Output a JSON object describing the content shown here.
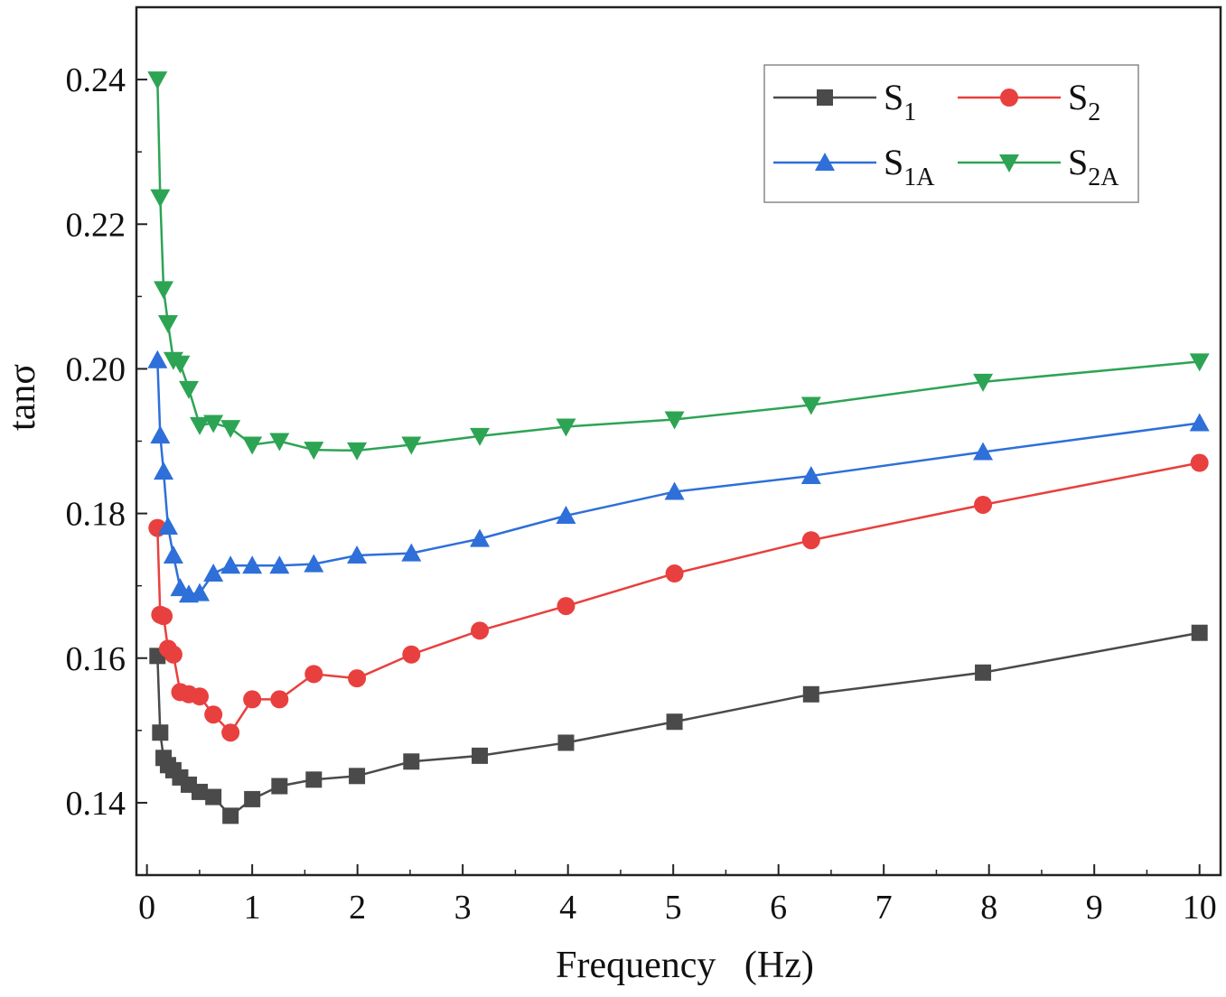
{
  "chart_data": {
    "type": "line",
    "title": "",
    "xlabel": "Frequency   (Hz)",
    "ylabel": "tanσ",
    "xlim": [
      -0.1,
      10.2
    ],
    "ylim": [
      0.13,
      0.25
    ],
    "xticks": [
      0,
      1,
      2,
      3,
      4,
      5,
      6,
      7,
      8,
      9,
      10
    ],
    "xtick_labels": [
      "0",
      "1",
      "2",
      "3",
      "4",
      "5",
      "6",
      "7",
      "8",
      "9",
      "10"
    ],
    "yticks": [
      0.14,
      0.16,
      0.18,
      0.2,
      0.22,
      0.24
    ],
    "ytick_labels": [
      "0.14",
      "0.16",
      "0.18",
      "0.20",
      "0.22",
      "0.24"
    ],
    "grid": false,
    "legend_position": "top-right",
    "series": [
      {
        "name": "S1",
        "label_main": "S",
        "label_sub": "1",
        "color": "#4a4a4a",
        "marker": "square",
        "x": [
          0.1,
          0.126,
          0.158,
          0.2,
          0.251,
          0.316,
          0.398,
          0.501,
          0.631,
          0.794,
          1.0,
          1.259,
          1.585,
          1.995,
          2.512,
          3.162,
          3.981,
          5.012,
          6.31,
          7.943,
          10.0
        ],
        "y": [
          0.1603,
          0.1497,
          0.1462,
          0.1452,
          0.1445,
          0.1435,
          0.1425,
          0.1415,
          0.1408,
          0.1382,
          0.1405,
          0.1423,
          0.1432,
          0.1437,
          0.1457,
          0.1465,
          0.1483,
          0.1512,
          0.155,
          0.158,
          0.1635
        ]
      },
      {
        "name": "S2",
        "label_main": "S",
        "label_sub": "2",
        "color": "#e8403e",
        "marker": "circle",
        "x": [
          0.1,
          0.126,
          0.158,
          0.2,
          0.251,
          0.316,
          0.398,
          0.501,
          0.631,
          0.794,
          1.0,
          1.259,
          1.585,
          1.995,
          2.512,
          3.162,
          3.981,
          5.012,
          6.31,
          7.943,
          10.0
        ],
        "y": [
          0.178,
          0.166,
          0.1658,
          0.1613,
          0.1605,
          0.1553,
          0.155,
          0.1547,
          0.1522,
          0.1497,
          0.1543,
          0.1543,
          0.1578,
          0.1572,
          0.1605,
          0.1638,
          0.1672,
          0.1717,
          0.1763,
          0.1812,
          0.187
        ]
      },
      {
        "name": "S1A",
        "label_main": "S",
        "label_sub": "1A",
        "color": "#2e6fd9",
        "marker": "triangle-up",
        "x": [
          0.1,
          0.126,
          0.158,
          0.2,
          0.251,
          0.316,
          0.398,
          0.501,
          0.631,
          0.794,
          1.0,
          1.259,
          1.585,
          1.995,
          2.512,
          3.162,
          3.981,
          5.012,
          6.31,
          7.943,
          10.0
        ],
        "y": [
          0.2012,
          0.1908,
          0.1858,
          0.1782,
          0.1742,
          0.1697,
          0.1688,
          0.169,
          0.1717,
          0.1728,
          0.1728,
          0.1728,
          0.173,
          0.1742,
          0.1745,
          0.1765,
          0.1797,
          0.183,
          0.1852,
          0.1885,
          0.1925
        ]
      },
      {
        "name": "S2A",
        "label_main": "S",
        "label_sub": "2A",
        "color": "#2da454",
        "marker": "triangle-down",
        "x": [
          0.1,
          0.126,
          0.158,
          0.2,
          0.251,
          0.316,
          0.398,
          0.501,
          0.631,
          0.794,
          1.0,
          1.259,
          1.585,
          1.995,
          2.512,
          3.162,
          3.981,
          5.012,
          6.31,
          7.943,
          10.0
        ],
        "y": [
          0.24,
          0.2237,
          0.211,
          0.2063,
          0.2012,
          0.2007,
          0.1972,
          0.1922,
          0.1925,
          0.1918,
          0.1895,
          0.19,
          0.1888,
          0.1887,
          0.1895,
          0.1907,
          0.192,
          0.193,
          0.195,
          0.1982,
          0.201
        ]
      }
    ]
  }
}
